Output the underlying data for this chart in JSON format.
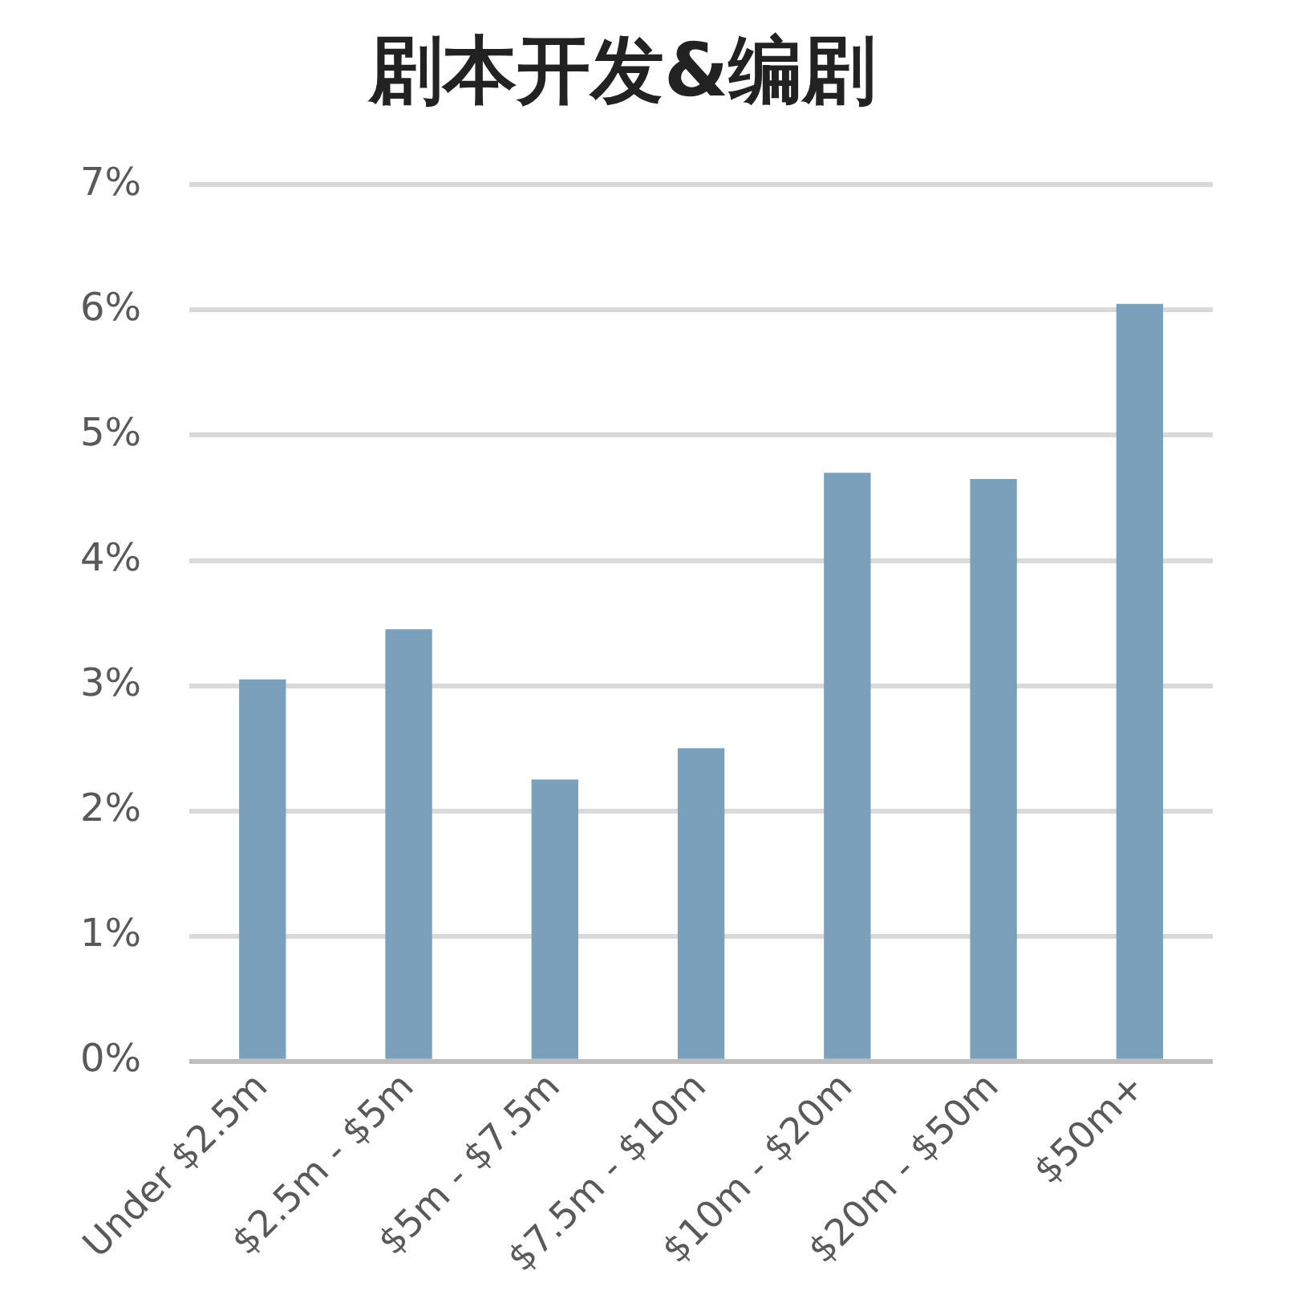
{
  "chart_data": {
    "type": "bar",
    "title": "剧本开发&编剧",
    "categories": [
      "Under $2.5m",
      "$2.5m - $5m",
      "$5m - $7.5m",
      "$7.5m - $10m",
      "$10m - $20m",
      "$20m - $50m",
      "$50m+"
    ],
    "values": [
      3.05,
      3.45,
      2.25,
      2.5,
      4.7,
      4.65,
      6.05
    ],
    "color": "#7aa0bc",
    "ylim": [
      0,
      7
    ],
    "yticks": [
      {
        "value": 0,
        "label": "0%"
      },
      {
        "value": 1,
        "label": "1%"
      },
      {
        "value": 2,
        "label": "2%"
      },
      {
        "value": 3,
        "label": "3%"
      },
      {
        "value": 4,
        "label": "4%"
      },
      {
        "value": 5,
        "label": "5%"
      },
      {
        "value": 6,
        "label": "6%"
      },
      {
        "value": 7,
        "label": "7%"
      }
    ],
    "grid": "y",
    "legend": false
  }
}
